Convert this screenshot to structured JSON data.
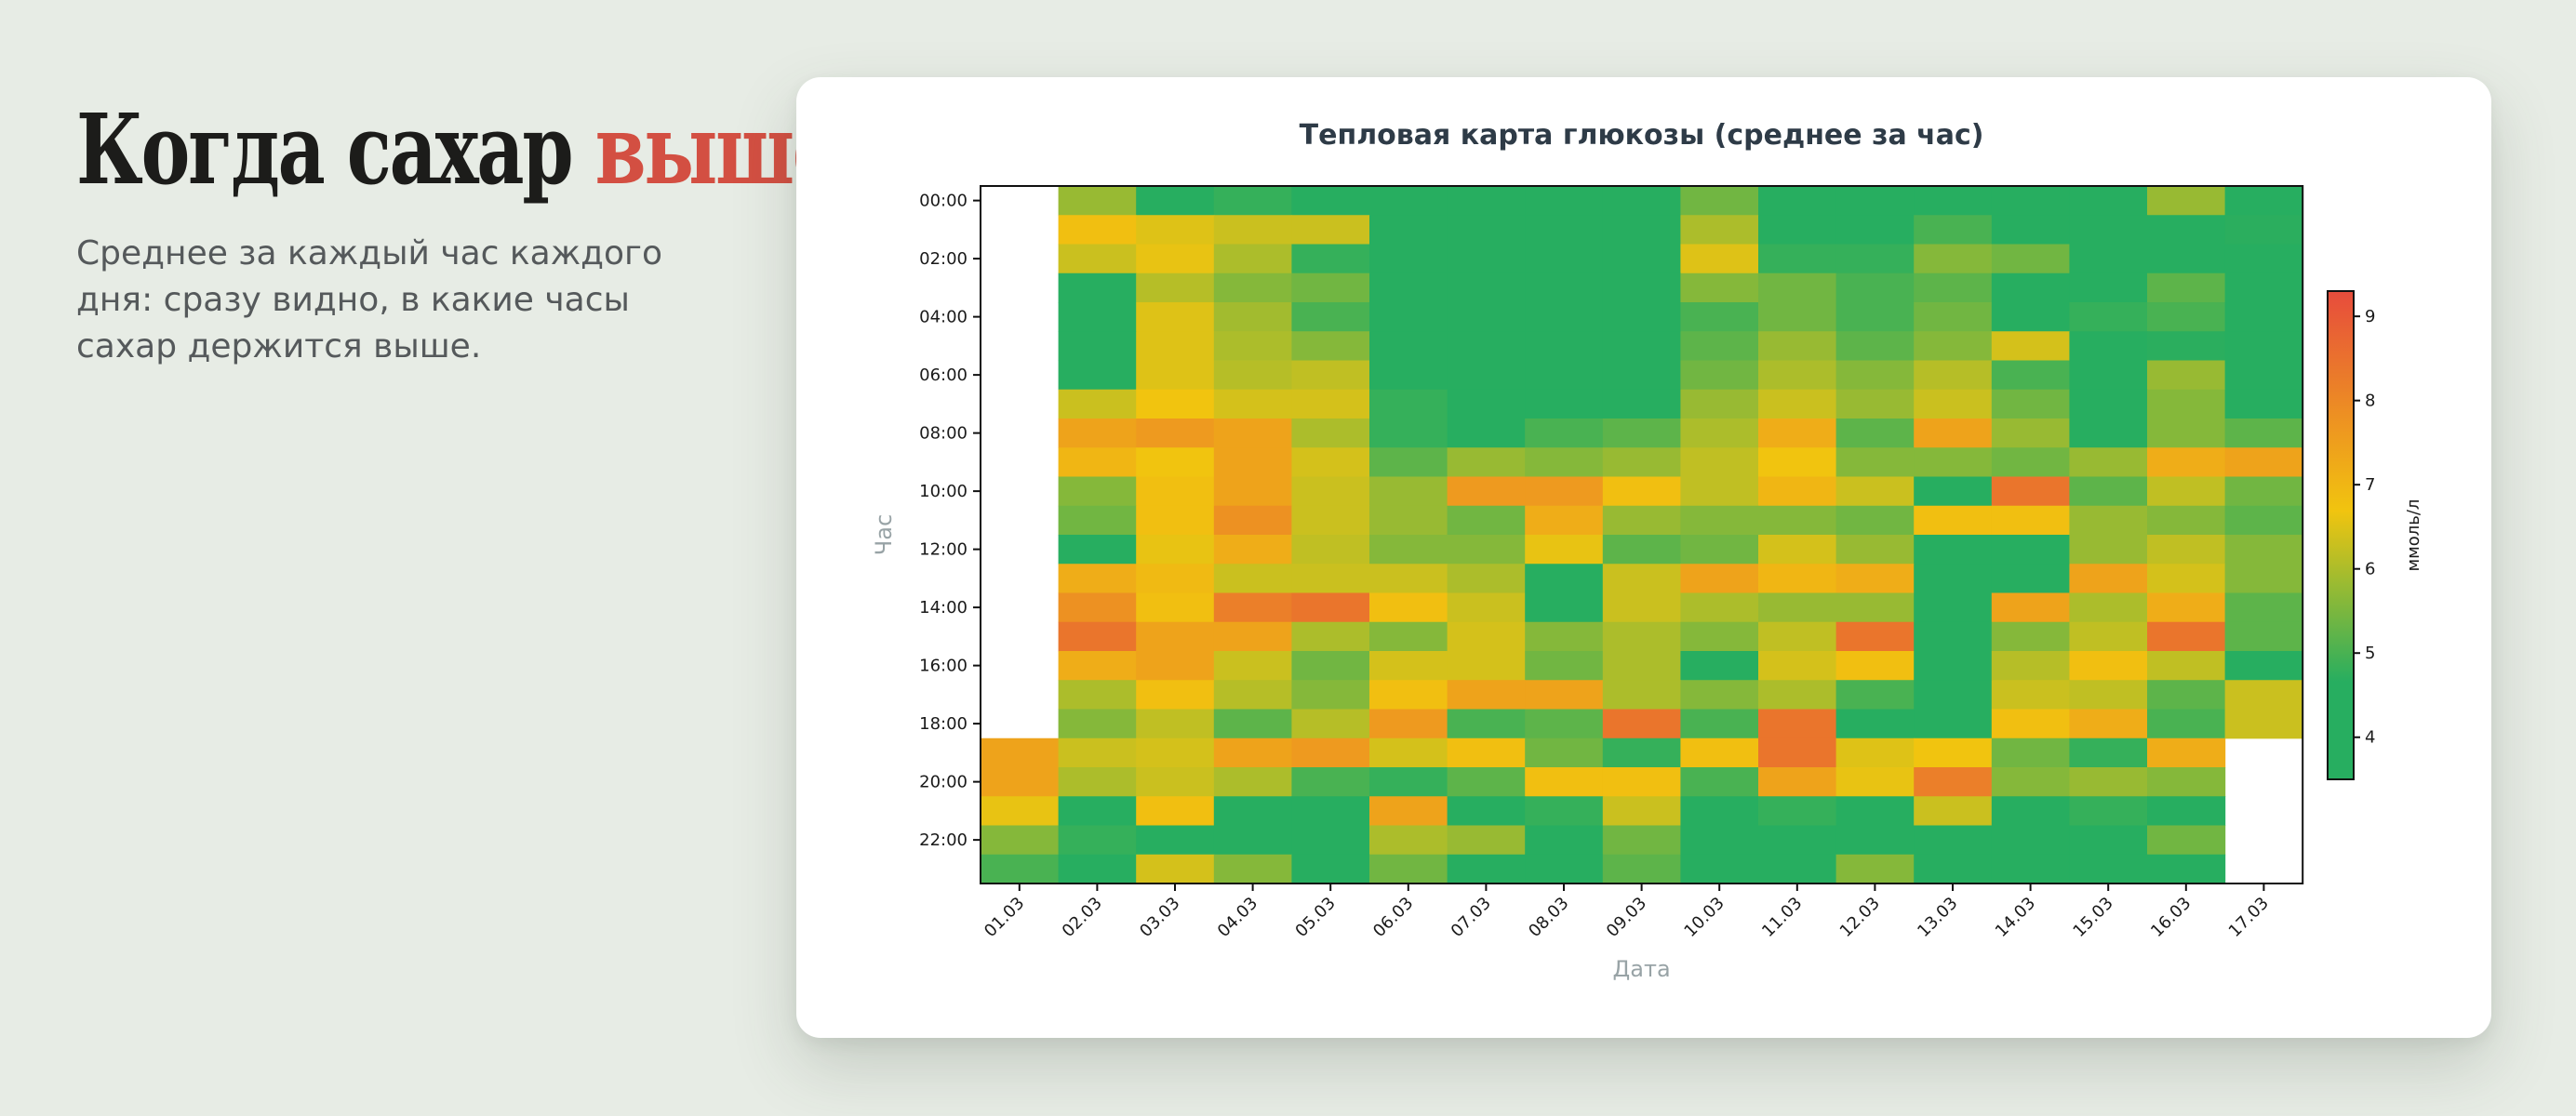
{
  "header": {
    "title_main": "Когда сахар",
    "title_accent": "выше",
    "subtitle": "Среднее за каждый час каждого дня: сразу видно, в какие часы сахар держится выше."
  },
  "colors": {
    "background": "#e7ece5",
    "accent": "#d34f42",
    "scale_low": "#27ae60",
    "scale_mid": "#f1c40f",
    "scale_high": "#e74c3c"
  },
  "chart_data": {
    "type": "heatmap",
    "title": "Тепловая карта глюкозы (среднее за час)",
    "xlabel": "Дата",
    "ylabel": "Час",
    "x": [
      "01.03",
      "02.03",
      "03.03",
      "04.03",
      "05.03",
      "06.03",
      "07.03",
      "08.03",
      "09.03",
      "10.03",
      "11.03",
      "12.03",
      "13.03",
      "14.03",
      "15.03",
      "16.03",
      "17.03"
    ],
    "y": [
      "00:00",
      "01:00",
      "02:00",
      "03:00",
      "04:00",
      "05:00",
      "06:00",
      "07:00",
      "08:00",
      "09:00",
      "10:00",
      "11:00",
      "12:00",
      "13:00",
      "14:00",
      "15:00",
      "16:00",
      "17:00",
      "18:00",
      "19:00",
      "20:00",
      "21:00",
      "22:00",
      "23:00"
    ],
    "y_tick_labels": [
      "00:00",
      "02:00",
      "04:00",
      "06:00",
      "08:00",
      "10:00",
      "12:00",
      "14:00",
      "16:00",
      "18:00",
      "20:00",
      "22:00"
    ],
    "colorbar": {
      "label": "ммоль/л",
      "range": [
        3.5,
        9.3
      ],
      "ticks": [
        4,
        5,
        6,
        7,
        8,
        9
      ]
    },
    "values": [
      [
        null,
        5.8,
        4.2,
        4.8,
        4.2,
        4.6,
        4.0,
        4.6,
        4.3,
        5.4,
        4.0,
        4.0,
        4.0,
        4.0,
        4.0,
        5.8,
        4.2
      ],
      [
        null,
        6.8,
        6.5,
        6.3,
        6.3,
        4.6,
        4.0,
        4.0,
        4.0,
        6.0,
        4.0,
        4.4,
        5.0,
        4.3,
        4.0,
        4.0,
        4.7
      ],
      [
        null,
        6.3,
        6.6,
        6.0,
        4.8,
        4.4,
        4.0,
        4.0,
        4.5,
        6.5,
        4.8,
        4.8,
        5.6,
        5.4,
        4.3,
        4.0,
        4.0
      ],
      [
        null,
        4.5,
        6.1,
        5.6,
        5.4,
        4.4,
        4.0,
        4.0,
        4.0,
        5.6,
        5.4,
        5.0,
        5.2,
        4.4,
        4.0,
        5.2,
        4.0
      ],
      [
        null,
        4.0,
        6.5,
        5.9,
        5.0,
        4.0,
        4.0,
        4.0,
        4.0,
        5.0,
        5.4,
        5.0,
        5.4,
        4.0,
        4.8,
        5.0,
        4.0
      ],
      [
        null,
        4.0,
        6.5,
        6.0,
        5.6,
        4.4,
        4.4,
        4.0,
        4.6,
        5.2,
        5.8,
        5.2,
        5.6,
        6.4,
        4.0,
        4.7,
        4.4
      ],
      [
        null,
        4.0,
        6.5,
        6.1,
        6.2,
        4.0,
        4.0,
        4.0,
        4.0,
        5.4,
        6.0,
        5.6,
        6.1,
        5.0,
        4.0,
        5.8,
        4.0
      ],
      [
        null,
        6.3,
        6.7,
        6.4,
        6.4,
        4.8,
        4.0,
        4.4,
        4.6,
        5.8,
        6.3,
        5.8,
        6.3,
        5.4,
        4.0,
        5.6,
        4.0
      ],
      [
        null,
        7.4,
        7.6,
        7.4,
        6.0,
        4.8,
        4.4,
        5.0,
        5.2,
        6.0,
        7.2,
        5.2,
        7.4,
        5.8,
        4.0,
        5.6,
        5.2
      ],
      [
        null,
        7.0,
        6.7,
        7.4,
        6.4,
        5.2,
        5.8,
        5.6,
        5.8,
        6.2,
        6.7,
        5.6,
        5.6,
        5.4,
        5.8,
        7.2,
        7.4
      ],
      [
        null,
        5.6,
        6.8,
        7.4,
        6.3,
        5.8,
        7.6,
        7.6,
        6.8,
        6.2,
        7.0,
        6.3,
        4.2,
        8.4,
        5.2,
        6.2,
        5.4
      ],
      [
        null,
        5.4,
        6.8,
        7.8,
        6.3,
        5.8,
        5.4,
        7.2,
        5.8,
        5.6,
        5.6,
        5.4,
        6.8,
        6.8,
        5.8,
        5.6,
        5.2
      ],
      [
        null,
        4.4,
        6.6,
        7.2,
        6.2,
        5.6,
        5.6,
        6.6,
        5.2,
        5.4,
        6.4,
        5.8,
        4.0,
        4.6,
        5.8,
        6.2,
        5.6
      ],
      [
        null,
        7.2,
        6.9,
        6.3,
        6.3,
        6.3,
        6.0,
        4.6,
        6.3,
        7.4,
        7.0,
        7.2,
        4.0,
        4.6,
        7.4,
        6.4,
        5.6
      ],
      [
        null,
        7.8,
        6.8,
        8.2,
        8.4,
        6.8,
        6.3,
        4.6,
        6.3,
        6.0,
        5.8,
        5.8,
        4.0,
        7.4,
        6.0,
        7.2,
        5.2
      ],
      [
        null,
        8.4,
        7.4,
        7.4,
        6.0,
        5.6,
        6.4,
        5.6,
        6.0,
        5.6,
        6.2,
        8.4,
        4.0,
        5.6,
        6.2,
        8.4,
        5.2
      ],
      [
        null,
        7.2,
        7.4,
        6.3,
        5.4,
        6.4,
        6.4,
        5.4,
        6.0,
        4.6,
        6.4,
        6.8,
        4.0,
        6.1,
        6.8,
        6.2,
        4.6
      ],
      [
        null,
        6.0,
        6.8,
        6.1,
        5.6,
        6.8,
        7.4,
        7.4,
        6.0,
        5.6,
        6.0,
        5.0,
        4.0,
        6.3,
        6.2,
        5.2,
        6.3
      ],
      [
        null,
        5.6,
        6.2,
        5.2,
        6.1,
        7.6,
        5.0,
        5.2,
        8.4,
        5.0,
        8.4,
        4.4,
        4.0,
        6.8,
        7.2,
        5.0,
        6.3
      ],
      [
        7.4,
        6.3,
        6.4,
        7.4,
        7.6,
        6.4,
        6.8,
        5.4,
        4.8,
        6.8,
        8.4,
        6.5,
        6.7,
        5.4,
        4.8,
        7.2,
        null
      ],
      [
        7.4,
        6.0,
        6.3,
        6.0,
        5.0,
        4.8,
        5.2,
        6.8,
        6.8,
        5.0,
        7.4,
        6.6,
        8.2,
        5.6,
        5.8,
        5.6,
        null
      ],
      [
        6.6,
        4.4,
        6.8,
        4.4,
        4.4,
        7.4,
        4.4,
        4.8,
        6.3,
        4.4,
        4.8,
        4.6,
        6.3,
        4.6,
        4.8,
        4.4,
        null
      ],
      [
        5.6,
        4.8,
        4.2,
        4.2,
        4.6,
        6.0,
        5.8,
        4.0,
        5.4,
        4.4,
        4.4,
        4.0,
        4.0,
        4.4,
        4.2,
        5.4,
        null
      ],
      [
        5.0,
        4.2,
        6.4,
        5.6,
        4.2,
        5.4,
        4.2,
        4.0,
        5.2,
        4.4,
        4.0,
        5.6,
        4.0,
        4.2,
        4.0,
        4.0,
        null
      ]
    ]
  }
}
